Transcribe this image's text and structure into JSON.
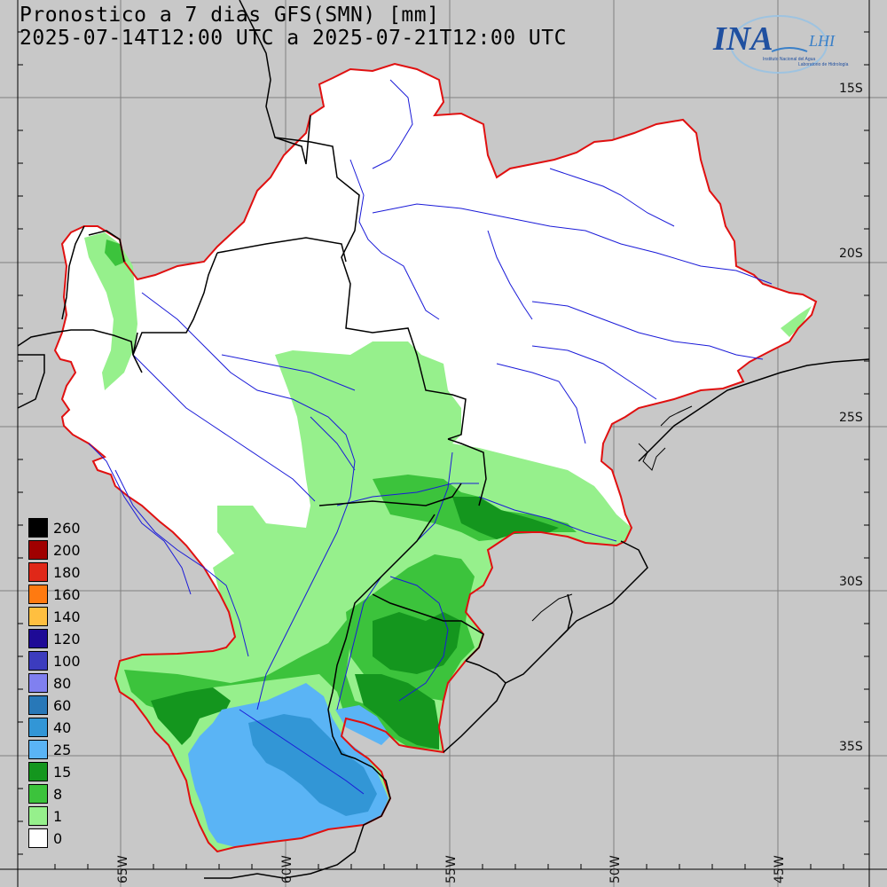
{
  "title": {
    "line1": "Pronostico a 7 dias GFS(SMN) [mm]",
    "line2": "2025-07-14T12:00 UTC a 2025-07-21T12:00 UTC"
  },
  "logo": {
    "mark": "INA",
    "sub": "LHI",
    "tagline1": "Instituto Nacional del Agua",
    "tagline2": "Laboratorio de Hidrología"
  },
  "lat_labels": [
    "15S",
    "20S",
    "25S",
    "30S",
    "35S"
  ],
  "lon_labels": [
    "65W",
    "60W",
    "55W",
    "50W",
    "45W"
  ],
  "legend": [
    {
      "label": "260",
      "color": "#000000"
    },
    {
      "label": "200",
      "color": "#a00000"
    },
    {
      "label": "180",
      "color": "#e02818"
    },
    {
      "label": "160",
      "color": "#ff7a10"
    },
    {
      "label": "140",
      "color": "#ffbf40"
    },
    {
      "label": "120",
      "color": "#1e0a96"
    },
    {
      "label": "100",
      "color": "#3c3cbe"
    },
    {
      "label": "80",
      "color": "#8080f0"
    },
    {
      "label": "60",
      "color": "#2878b8"
    },
    {
      "label": "40",
      "color": "#3296d6"
    },
    {
      "label": "25",
      "color": "#5ab4f5"
    },
    {
      "label": "15",
      "color": "#14961e"
    },
    {
      "label": "8",
      "color": "#3cc33c"
    },
    {
      "label": "1",
      "color": "#96f08c"
    },
    {
      "label": "0",
      "color": "#ffffff"
    }
  ],
  "colors": {
    "background": "#c8c8c8",
    "basin_outline": "#e01010",
    "rivers": "#1a1ad8",
    "borders": "#000000",
    "gridlines": "#808080"
  }
}
